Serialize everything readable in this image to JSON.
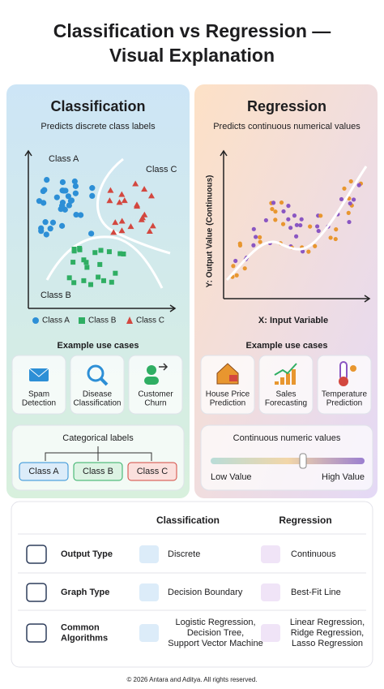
{
  "header": {
    "title_lines": [
      "Classification vs Regression —",
      "Visual Explanation"
    ]
  },
  "classification": {
    "title": "Classification",
    "subtitle": "Predicts discrete class labels",
    "plot_labels": [
      "Class A",
      "Class C",
      "Class B"
    ],
    "legend": [
      "Class A",
      "Class B",
      "Class C"
    ],
    "use_cases_title": "Example use cases",
    "use_cases": [
      [
        "Spam",
        "Detection"
      ],
      [
        "Disease",
        "Classification"
      ],
      [
        "Customer",
        "Churn"
      ]
    ],
    "labels_box": {
      "title": "Categorical labels",
      "items": [
        "Class A",
        "Class B",
        "Class C"
      ]
    }
  },
  "regression": {
    "title": "Regression",
    "subtitle": "Predicts continuous numerical values",
    "y_axis_label": "Y: Output Value (Continuous)",
    "x_axis_label": "X: Input Variable",
    "use_cases_title": "Example use cases",
    "use_cases": [
      [
        "House Price",
        "Prediction"
      ],
      [
        "Sales",
        "Forecasting"
      ],
      [
        "Temperature",
        "Prediction"
      ]
    ],
    "values_box": {
      "title": "Continuous numeric values",
      "low": "Low Value",
      "high": "High Value"
    }
  },
  "table": {
    "columns": [
      "Classification",
      "Regression"
    ],
    "rows": [
      {
        "label": [
          "Output Type"
        ],
        "classification": [
          "Discrete"
        ],
        "regression": [
          "Continuous"
        ]
      },
      {
        "label": [
          "Graph Type"
        ],
        "classification": [
          "Decision Boundary"
        ],
        "regression": [
          "Best-Fit Line"
        ]
      },
      {
        "label": [
          "Common",
          "Algorithms"
        ],
        "classification": [
          "Logistic Regression,",
          "Decision Tree,",
          "Support Vector Machine"
        ],
        "regression": [
          "Linear Regression,",
          "Ridge Regression,",
          "Lasso Regression"
        ]
      }
    ]
  },
  "footer": "© 2026 Antara and Aditya. All rights reserved."
}
